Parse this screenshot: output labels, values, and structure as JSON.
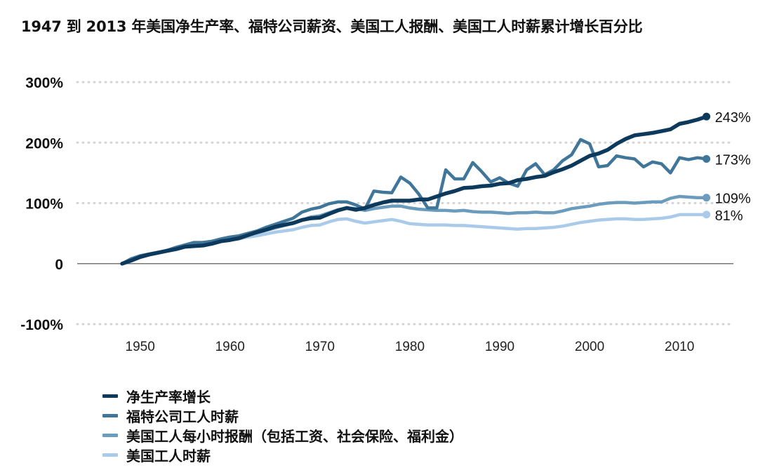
{
  "chart_data": {
    "type": "line",
    "title": "1947 到 2013 年美国净生产率、福特公司薪资、美国工人报酬、美国工人时薪累计增长百分比",
    "xlabel": "",
    "ylabel": "",
    "xlim": [
      1943,
      2016
    ],
    "ylim": [
      -100,
      300
    ],
    "yticks": [
      {
        "value": 300,
        "label": "300%"
      },
      {
        "value": 200,
        "label": "200%"
      },
      {
        "value": 100,
        "label": "100%"
      },
      {
        "value": 0,
        "label": "0"
      },
      {
        "value": -100,
        "label": "-100%"
      }
    ],
    "xticks": [
      {
        "value": 1950,
        "label": "1950"
      },
      {
        "value": 1960,
        "label": "1960"
      },
      {
        "value": 1970,
        "label": "1970"
      },
      {
        "value": 1980,
        "label": "1980"
      },
      {
        "value": 1990,
        "label": "1990"
      },
      {
        "value": 2000,
        "label": "2000"
      },
      {
        "value": 2010,
        "label": "2010"
      }
    ],
    "grid": "horizontal-dotted",
    "legend_position": "bottom-left",
    "x": [
      1948,
      1949,
      1950,
      1951,
      1952,
      1953,
      1954,
      1955,
      1956,
      1957,
      1958,
      1959,
      1960,
      1961,
      1962,
      1963,
      1964,
      1965,
      1966,
      1967,
      1968,
      1969,
      1970,
      1971,
      1972,
      1973,
      1974,
      1975,
      1976,
      1977,
      1978,
      1979,
      1980,
      1981,
      1982,
      1983,
      1984,
      1985,
      1986,
      1987,
      1988,
      1989,
      1990,
      1991,
      1992,
      1993,
      1994,
      1995,
      1996,
      1997,
      1998,
      1999,
      2000,
      2001,
      2002,
      2003,
      2004,
      2005,
      2006,
      2007,
      2008,
      2009,
      2010,
      2011,
      2012,
      2013
    ],
    "series": [
      {
        "name": "净生产率增长",
        "color": "#0d3a5c",
        "end_label": "243%",
        "values": [
          0,
          5,
          11,
          15,
          18,
          21,
          24,
          28,
          29,
          30,
          33,
          37,
          39,
          42,
          47,
          52,
          56,
          61,
          64,
          67,
          72,
          75,
          76,
          82,
          88,
          92,
          89,
          92,
          97,
          101,
          104,
          104,
          104,
          106,
          106,
          111,
          116,
          120,
          125,
          126,
          128,
          129,
          132,
          133,
          138,
          140,
          143,
          145,
          151,
          156,
          162,
          170,
          178,
          182,
          188,
          198,
          206,
          212,
          214,
          216,
          219,
          222,
          231,
          234,
          238,
          243
        ]
      },
      {
        "name": "福特公司工人时薪",
        "color": "#3f7699",
        "end_label": "173%",
        "values": [
          0,
          8,
          13,
          16,
          19,
          22,
          27,
          31,
          35,
          35,
          37,
          41,
          44,
          46,
          50,
          54,
          60,
          65,
          70,
          75,
          85,
          90,
          93,
          99,
          102,
          102,
          97,
          90,
          120,
          118,
          117,
          143,
          133,
          115,
          92,
          92,
          155,
          140,
          140,
          167,
          152,
          135,
          142,
          133,
          128,
          155,
          165,
          147,
          155,
          170,
          180,
          205,
          198,
          160,
          162,
          178,
          175,
          173,
          160,
          168,
          165,
          150,
          175,
          172,
          175,
          173
        ]
      },
      {
        "name": "美国工人每小时报酬（包括工资、社会保险、福利金）",
        "color": "#6b9bbd",
        "end_label": "109%",
        "values": [
          0,
          6,
          12,
          15,
          18,
          22,
          25,
          29,
          33,
          35,
          37,
          40,
          42,
          44,
          48,
          51,
          55,
          59,
          63,
          67,
          72,
          77,
          79,
          84,
          89,
          92,
          91,
          88,
          91,
          93,
          95,
          95,
          92,
          90,
          89,
          88,
          88,
          87,
          88,
          86,
          85,
          85,
          84,
          83,
          84,
          84,
          85,
          84,
          84,
          87,
          91,
          93,
          95,
          98,
          100,
          101,
          101,
          100,
          101,
          102,
          102,
          108,
          111,
          110,
          109,
          109
        ]
      },
      {
        "name": "美国工人时薪",
        "color": "#a9cbe9",
        "end_label": "81%",
        "values": [
          0,
          7,
          12,
          15,
          18,
          22,
          25,
          29,
          31,
          33,
          34,
          37,
          39,
          41,
          44,
          46,
          49,
          52,
          54,
          56,
          60,
          63,
          64,
          69,
          73,
          74,
          70,
          67,
          69,
          71,
          73,
          70,
          66,
          65,
          64,
          64,
          64,
          63,
          63,
          62,
          61,
          60,
          59,
          58,
          57,
          58,
          58,
          59,
          60,
          62,
          65,
          68,
          70,
          72,
          73,
          74,
          74,
          73,
          73,
          74,
          75,
          77,
          81,
          81,
          81,
          81
        ]
      }
    ]
  }
}
